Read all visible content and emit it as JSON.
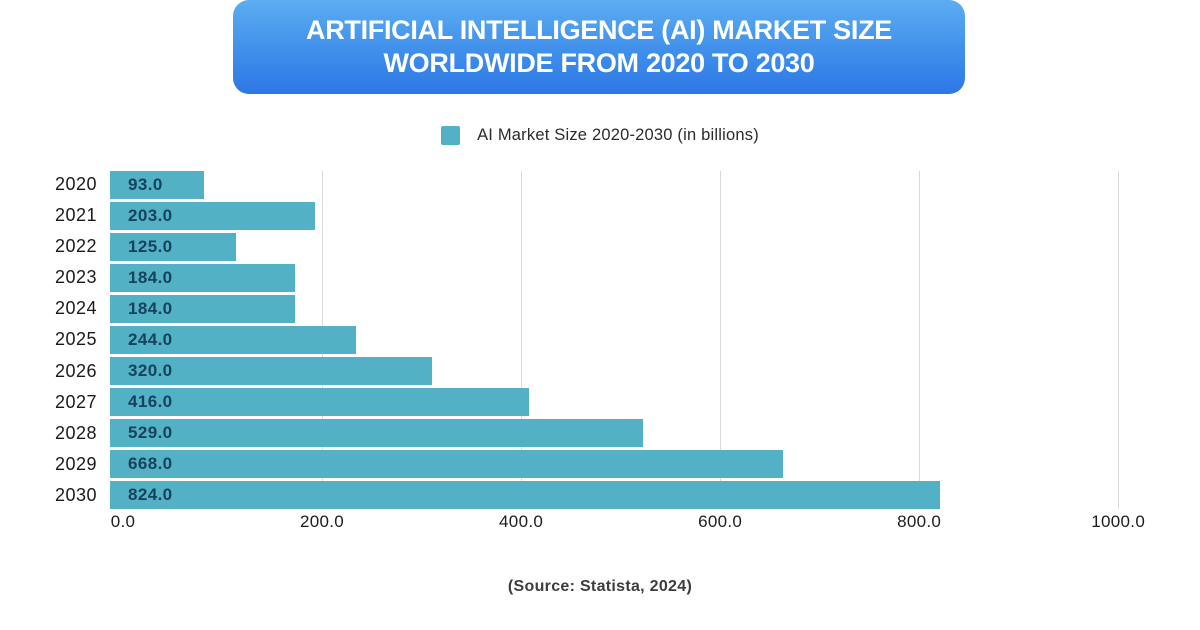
{
  "header": {
    "line1": "ARTIFICIAL INTELLIGENCE (AI) MARKET SIZE",
    "line2": "WORLDWIDE FROM 2020 TO 2030"
  },
  "legend": {
    "label": "AI Market Size 2020-2030 (in billions)",
    "swatch_color": "#52b1c5"
  },
  "source": "(Source: Statista, 2024)",
  "colors": {
    "banner_gradient_top": "#5cadf1",
    "banner_gradient_bottom": "#2d77e5",
    "bar_fill": "#52b1c5",
    "bar_value_text": "#16425c",
    "axis_text": "#1c1c1c",
    "gridline": "#d9d9d9",
    "background": "#ffffff"
  },
  "chart_data": {
    "type": "bar",
    "orientation": "horizontal",
    "title": "Artificial Intelligence (AI) Market Size Worldwide from 2020 to 2030",
    "xlabel": "",
    "ylabel": "",
    "categories": [
      "2020",
      "2021",
      "2022",
      "2023",
      "2024",
      "2025",
      "2026",
      "2027",
      "2028",
      "2029",
      "2030"
    ],
    "values": [
      93,
      203,
      125,
      184,
      184,
      244,
      320,
      416,
      529,
      668,
      824
    ],
    "value_labels": [
      "93.0",
      "203.0",
      "125.0",
      "184.0",
      "184.0",
      "244.0",
      "320.0",
      "416.0",
      "529.0",
      "668.0",
      "824.0"
    ],
    "xticks": [
      "0.0",
      "200.0",
      "400.0",
      "600.0",
      "800.0",
      "1000.0"
    ],
    "xtick_values": [
      0,
      200,
      400,
      600,
      800,
      1000
    ],
    "xlim": [
      0,
      1000
    ],
    "grid": true,
    "legend_entries": [
      "AI Market Size 2020-2030 (in billions)"
    ],
    "legend_position": "top",
    "series_color": "#52b1c5",
    "unit": "billions USD"
  }
}
